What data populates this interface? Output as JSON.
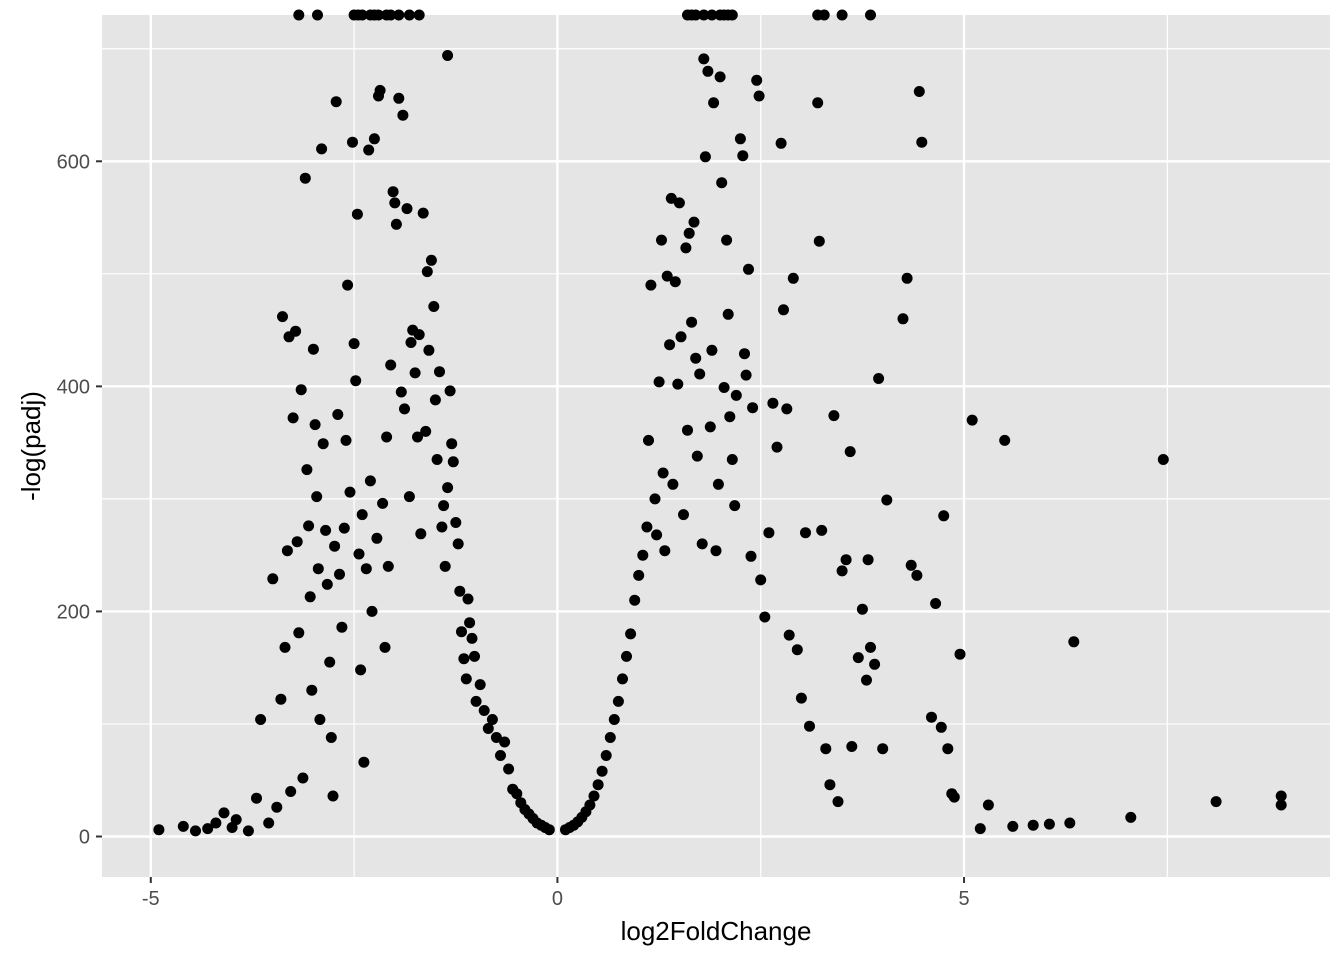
{
  "chart_data": {
    "type": "scatter",
    "title": "",
    "xlabel": "log2FoldChange",
    "ylabel": "-log(padj)",
    "xlim": [
      -5.6,
      9.5
    ],
    "ylim": [
      -36,
      730
    ],
    "x_ticks": [
      -5,
      0,
      5
    ],
    "x_tick_labels": [
      "-5",
      "0",
      "5"
    ],
    "y_ticks": [
      0,
      200,
      400,
      600
    ],
    "y_tick_labels": [
      "0",
      "200",
      "400",
      "600"
    ],
    "grid": true,
    "colors": {
      "panel": "#e5e5e5",
      "grid": "#ffffff",
      "point": "#000000",
      "tick_text": "#4d4d4d"
    },
    "series": [
      {
        "points": [
          [
            -4.9,
            6
          ],
          [
            -4.6,
            9
          ],
          [
            -4.45,
            5
          ],
          [
            -4.3,
            7
          ],
          [
            -4.2,
            12
          ],
          [
            -4.1,
            21
          ],
          [
            -4.0,
            8
          ],
          [
            -3.95,
            15
          ],
          [
            -3.8,
            5
          ],
          [
            -3.7,
            34
          ],
          [
            -3.65,
            104
          ],
          [
            -3.55,
            12
          ],
          [
            -3.5,
            229
          ],
          [
            -3.45,
            26
          ],
          [
            -3.4,
            122
          ],
          [
            -3.38,
            462
          ],
          [
            -3.35,
            168
          ],
          [
            -3.32,
            254
          ],
          [
            -3.3,
            444
          ],
          [
            -3.28,
            40
          ],
          [
            -3.25,
            372
          ],
          [
            -3.22,
            449
          ],
          [
            -3.2,
            262
          ],
          [
            -3.18,
            181
          ],
          [
            -3.15,
            397
          ],
          [
            -3.13,
            52
          ],
          [
            -3.1,
            585
          ],
          [
            -3.08,
            326
          ],
          [
            -3.06,
            276
          ],
          [
            -3.04,
            213
          ],
          [
            -3.02,
            130
          ],
          [
            -3.0,
            433
          ],
          [
            -2.98,
            366
          ],
          [
            -2.96,
            302
          ],
          [
            -2.94,
            238
          ],
          [
            -2.92,
            104
          ],
          [
            -2.9,
            611
          ],
          [
            -2.88,
            349
          ],
          [
            -2.85,
            272
          ],
          [
            -2.83,
            224
          ],
          [
            -2.8,
            155
          ],
          [
            -2.78,
            88
          ],
          [
            -2.76,
            36
          ],
          [
            -2.74,
            258
          ],
          [
            -2.72,
            653
          ],
          [
            -2.7,
            375
          ],
          [
            -2.68,
            233
          ],
          [
            -2.65,
            186
          ],
          [
            -2.62,
            274
          ],
          [
            -2.6,
            352
          ],
          [
            -2.58,
            490
          ],
          [
            -2.55,
            306
          ],
          [
            -2.52,
            617
          ],
          [
            -2.5,
            438
          ],
          [
            -2.48,
            405
          ],
          [
            -2.46,
            553
          ],
          [
            -2.44,
            251
          ],
          [
            -2.42,
            148
          ],
          [
            -2.4,
            286
          ],
          [
            -2.38,
            66
          ],
          [
            -2.35,
            238
          ],
          [
            -2.32,
            610
          ],
          [
            -2.3,
            316
          ],
          [
            -2.28,
            200
          ],
          [
            -2.25,
            620
          ],
          [
            -2.22,
            265
          ],
          [
            -2.2,
            658
          ],
          [
            -2.18,
            663
          ],
          [
            -2.15,
            296
          ],
          [
            -2.12,
            168
          ],
          [
            -2.1,
            355
          ],
          [
            -2.08,
            240
          ],
          [
            -2.05,
            419
          ],
          [
            -2.02,
            573
          ],
          [
            -2.0,
            563
          ],
          [
            -1.98,
            544
          ],
          [
            -1.95,
            656
          ],
          [
            -1.92,
            395
          ],
          [
            -1.9,
            641
          ],
          [
            -1.88,
            380
          ],
          [
            -1.85,
            558
          ],
          [
            -1.82,
            302
          ],
          [
            -1.8,
            439
          ],
          [
            -1.78,
            450
          ],
          [
            -1.75,
            412
          ],
          [
            -1.72,
            355
          ],
          [
            -1.7,
            446
          ],
          [
            -1.68,
            269
          ],
          [
            -1.65,
            554
          ],
          [
            -1.62,
            360
          ],
          [
            -1.6,
            502
          ],
          [
            -1.58,
            432
          ],
          [
            -1.55,
            512
          ],
          [
            -1.52,
            471
          ],
          [
            -1.5,
            388
          ],
          [
            -1.48,
            335
          ],
          [
            -1.45,
            413
          ],
          [
            -1.42,
            275
          ],
          [
            -1.4,
            294
          ],
          [
            -1.38,
            240
          ],
          [
            -1.35,
            310
          ],
          [
            -1.32,
            396
          ],
          [
            -1.3,
            349
          ],
          [
            -1.28,
            333
          ],
          [
            -1.25,
            279
          ],
          [
            -1.22,
            260
          ],
          [
            -1.2,
            218
          ],
          [
            -1.18,
            182
          ],
          [
            -1.15,
            158
          ],
          [
            -1.12,
            140
          ],
          [
            -1.1,
            211
          ],
          [
            -1.08,
            190
          ],
          [
            -1.05,
            176
          ],
          [
            -1.02,
            160
          ],
          [
            -1.0,
            120
          ],
          [
            -0.95,
            135
          ],
          [
            -0.9,
            112
          ],
          [
            -0.85,
            96
          ],
          [
            -0.8,
            104
          ],
          [
            -0.75,
            88
          ],
          [
            -0.7,
            72
          ],
          [
            -0.65,
            84
          ],
          [
            -0.6,
            60
          ],
          [
            -0.55,
            42
          ],
          [
            -0.5,
            38
          ],
          [
            -0.45,
            30
          ],
          [
            -0.4,
            24
          ],
          [
            -0.35,
            20
          ],
          [
            -0.3,
            16
          ],
          [
            -0.25,
            12
          ],
          [
            -0.2,
            10
          ],
          [
            -0.15,
            8
          ],
          [
            -0.1,
            6
          ],
          [
            -3.18,
            735
          ],
          [
            -2.95,
            735
          ],
          [
            -2.5,
            735
          ],
          [
            -2.45,
            735
          ],
          [
            -2.4,
            735
          ],
          [
            -2.3,
            735
          ],
          [
            -2.25,
            735
          ],
          [
            -2.2,
            735
          ],
          [
            -2.1,
            735
          ],
          [
            -2.05,
            735
          ],
          [
            -1.95,
            735
          ],
          [
            -1.82,
            735
          ],
          [
            -1.7,
            735
          ],
          [
            -1.35,
            694
          ],
          [
            0.1,
            6
          ],
          [
            0.15,
            8
          ],
          [
            0.2,
            10
          ],
          [
            0.25,
            13
          ],
          [
            0.3,
            17
          ],
          [
            0.35,
            22
          ],
          [
            0.4,
            28
          ],
          [
            0.45,
            36
          ],
          [
            0.5,
            46
          ],
          [
            0.55,
            58
          ],
          [
            0.6,
            72
          ],
          [
            0.65,
            88
          ],
          [
            0.7,
            104
          ],
          [
            0.75,
            120
          ],
          [
            0.8,
            140
          ],
          [
            0.85,
            160
          ],
          [
            0.9,
            180
          ],
          [
            0.95,
            210
          ],
          [
            1.0,
            232
          ],
          [
            1.05,
            250
          ],
          [
            1.1,
            275
          ],
          [
            1.12,
            352
          ],
          [
            1.15,
            490
          ],
          [
            1.2,
            300
          ],
          [
            1.22,
            268
          ],
          [
            1.25,
            404
          ],
          [
            1.28,
            530
          ],
          [
            1.3,
            323
          ],
          [
            1.32,
            254
          ],
          [
            1.35,
            498
          ],
          [
            1.38,
            437
          ],
          [
            1.4,
            567
          ],
          [
            1.42,
            313
          ],
          [
            1.45,
            493
          ],
          [
            1.48,
            402
          ],
          [
            1.5,
            563
          ],
          [
            1.52,
            444
          ],
          [
            1.55,
            286
          ],
          [
            1.58,
            523
          ],
          [
            1.6,
            361
          ],
          [
            1.62,
            536
          ],
          [
            1.65,
            457
          ],
          [
            1.68,
            546
          ],
          [
            1.7,
            425
          ],
          [
            1.72,
            338
          ],
          [
            1.75,
            411
          ],
          [
            1.78,
            260
          ],
          [
            1.8,
            691
          ],
          [
            1.82,
            604
          ],
          [
            1.85,
            680
          ],
          [
            1.88,
            364
          ],
          [
            1.9,
            432
          ],
          [
            1.92,
            652
          ],
          [
            1.95,
            254
          ],
          [
            1.98,
            313
          ],
          [
            2.0,
            675
          ],
          [
            2.02,
            581
          ],
          [
            2.05,
            399
          ],
          [
            2.08,
            530
          ],
          [
            2.1,
            464
          ],
          [
            2.12,
            373
          ],
          [
            2.15,
            335
          ],
          [
            2.18,
            294
          ],
          [
            2.2,
            392
          ],
          [
            2.25,
            620
          ],
          [
            2.28,
            605
          ],
          [
            2.3,
            429
          ],
          [
            2.32,
            410
          ],
          [
            2.35,
            504
          ],
          [
            2.38,
            249
          ],
          [
            2.4,
            381
          ],
          [
            2.45,
            672
          ],
          [
            2.48,
            658
          ],
          [
            2.5,
            228
          ],
          [
            2.55,
            195
          ],
          [
            2.6,
            270
          ],
          [
            2.65,
            385
          ],
          [
            2.7,
            346
          ],
          [
            2.75,
            616
          ],
          [
            2.78,
            468
          ],
          [
            2.82,
            380
          ],
          [
            2.85,
            179
          ],
          [
            2.9,
            496
          ],
          [
            2.95,
            166
          ],
          [
            3.0,
            123
          ],
          [
            3.05,
            270
          ],
          [
            3.1,
            98
          ],
          [
            3.2,
            652
          ],
          [
            3.22,
            529
          ],
          [
            3.25,
            272
          ],
          [
            3.3,
            78
          ],
          [
            3.35,
            46
          ],
          [
            3.4,
            374
          ],
          [
            3.45,
            31
          ],
          [
            3.5,
            236
          ],
          [
            3.55,
            246
          ],
          [
            3.6,
            342
          ],
          [
            3.62,
            80
          ],
          [
            3.7,
            159
          ],
          [
            3.75,
            202
          ],
          [
            3.8,
            139
          ],
          [
            3.82,
            246
          ],
          [
            3.85,
            168
          ],
          [
            3.9,
            153
          ],
          [
            3.95,
            407
          ],
          [
            4.0,
            78
          ],
          [
            4.05,
            299
          ],
          [
            4.25,
            460
          ],
          [
            4.3,
            496
          ],
          [
            4.35,
            241
          ],
          [
            4.42,
            232
          ],
          [
            4.45,
            662
          ],
          [
            4.48,
            617
          ],
          [
            4.6,
            106
          ],
          [
            4.65,
            207
          ],
          [
            4.72,
            97
          ],
          [
            4.75,
            285
          ],
          [
            4.8,
            78
          ],
          [
            4.85,
            38
          ],
          [
            4.88,
            35
          ],
          [
            4.95,
            162
          ],
          [
            5.1,
            370
          ],
          [
            5.2,
            7
          ],
          [
            5.3,
            28
          ],
          [
            5.5,
            352
          ],
          [
            5.6,
            9
          ],
          [
            5.85,
            10
          ],
          [
            6.05,
            11
          ],
          [
            6.3,
            12
          ],
          [
            6.35,
            173
          ],
          [
            7.05,
            17
          ],
          [
            7.45,
            335
          ],
          [
            8.1,
            31
          ],
          [
            8.9,
            36
          ],
          [
            8.9,
            28
          ],
          [
            1.6,
            735
          ],
          [
            1.65,
            735
          ],
          [
            1.7,
            735
          ],
          [
            1.8,
            735
          ],
          [
            1.9,
            735
          ],
          [
            2.0,
            735
          ],
          [
            2.05,
            735
          ],
          [
            2.1,
            735
          ],
          [
            2.15,
            735
          ],
          [
            3.2,
            735
          ],
          [
            3.28,
            735
          ],
          [
            3.5,
            735
          ],
          [
            3.85,
            735
          ]
        ]
      }
    ]
  }
}
